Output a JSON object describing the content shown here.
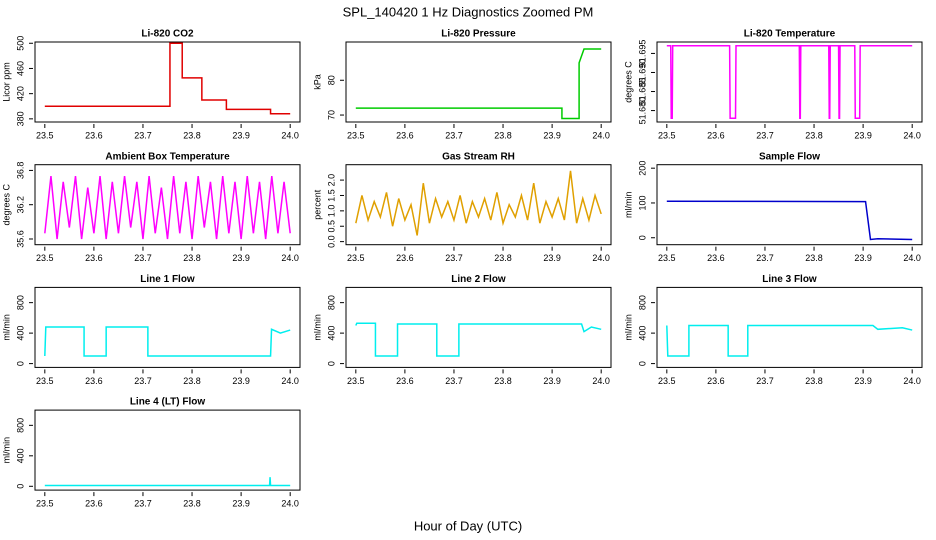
{
  "title": "SPL_140420  1 Hz Diagnostics Zoomed PM",
  "xlabel": "Hour of Day (UTC)",
  "chart_data": [
    {
      "type": "line",
      "title": "Li-820 CO2",
      "ylabel": "Licor ppm",
      "xlim": [
        23.48,
        24.02
      ],
      "xticks": [
        23.5,
        23.6,
        23.7,
        23.8,
        23.9,
        {
          "value": 24,
          "label": "24.0"
        }
      ],
      "ylim": [
        375,
        502
      ],
      "yticks": [
        380,
        420,
        460,
        500
      ],
      "series": [
        {
          "color": "#e00000",
          "x": [
            23.5,
            23.755,
            23.755,
            23.78,
            23.78,
            23.82,
            23.82,
            23.87,
            23.87,
            23.96,
            23.96,
            24.0
          ],
          "values": [
            400,
            400,
            500,
            500,
            445,
            445,
            410,
            410,
            395,
            395,
            388,
            388
          ]
        }
      ]
    },
    {
      "type": "line",
      "title": "Li-820 Pressure",
      "ylabel": "kPa",
      "xlim": [
        23.48,
        24.02
      ],
      "xticks": [
        23.5,
        23.6,
        23.7,
        23.8,
        23.9,
        {
          "value": 24,
          "label": "24.0"
        }
      ],
      "ylim": [
        68,
        91
      ],
      "yticks": [
        70,
        80
      ],
      "series": [
        {
          "color": "#00cc00",
          "x": [
            23.5,
            23.92,
            23.92,
            23.955,
            23.955,
            23.965,
            24.0
          ],
          "values": [
            72,
            72,
            69,
            69,
            85,
            89,
            89
          ]
        }
      ]
    },
    {
      "type": "line",
      "title": "Li-820 Temperature",
      "ylabel": "degrees C",
      "xlim": [
        23.48,
        24.02
      ],
      "xticks": [
        23.5,
        23.6,
        23.7,
        23.8,
        23.9,
        {
          "value": 24,
          "label": "24.0"
        }
      ],
      "ylim": [
        51.677,
        51.698
      ],
      "yticks": [
        {
          "value": 51.68,
          "label": "51.680"
        },
        51.685,
        {
          "value": 51.69,
          "label": "51.690"
        },
        51.695
      ],
      "series": [
        {
          "color": "#ff00ff",
          "x": [
            23.5,
            23.508,
            23.509,
            23.511,
            23.512,
            23.628,
            23.629,
            23.64,
            23.641,
            23.77,
            23.771,
            23.772,
            23.773,
            23.83,
            23.831,
            23.832,
            23.833,
            23.85,
            23.851,
            23.852,
            23.853,
            23.883,
            23.884,
            23.893,
            23.894,
            24.0
          ],
          "values": [
            51.697,
            51.697,
            51.678,
            51.678,
            51.697,
            51.697,
            51.678,
            51.678,
            51.697,
            51.697,
            51.678,
            51.678,
            51.697,
            51.697,
            51.678,
            51.678,
            51.697,
            51.697,
            51.678,
            51.678,
            51.697,
            51.697,
            51.678,
            51.678,
            51.697,
            51.697
          ]
        }
      ]
    },
    {
      "type": "line",
      "title": "Ambient Box Temperature",
      "ylabel": "degrees C",
      "xlim": [
        23.48,
        24.02
      ],
      "xticks": [
        23.5,
        23.6,
        23.7,
        23.8,
        23.9,
        {
          "value": 24,
          "label": "24.0"
        }
      ],
      "ylim": [
        35.5,
        36.9
      ],
      "yticks": [
        35.6,
        36.2,
        36.8
      ],
      "series": [
        {
          "color": "#ff00ff",
          "x": [
            23.5,
            23.5125,
            23.525,
            23.5375,
            23.55,
            23.5625,
            23.575,
            23.5875,
            23.6,
            23.6125,
            23.625,
            23.6375,
            23.65,
            23.6625,
            23.675,
            23.6875,
            23.7,
            23.7125,
            23.725,
            23.7375,
            23.75,
            23.7625,
            23.775,
            23.7875,
            23.8,
            23.8125,
            23.825,
            23.8375,
            23.85,
            23.8625,
            23.875,
            23.8875,
            23.9,
            23.9125,
            23.925,
            23.9375,
            23.95,
            23.9625,
            23.975,
            23.9875,
            24.0
          ],
          "values": [
            35.7,
            36.7,
            35.6,
            36.6,
            35.8,
            36.7,
            35.6,
            36.5,
            35.7,
            36.7,
            35.6,
            36.6,
            35.7,
            36.7,
            35.8,
            36.6,
            35.6,
            36.7,
            35.7,
            36.5,
            35.6,
            36.7,
            35.7,
            36.6,
            35.6,
            36.7,
            35.8,
            36.6,
            35.6,
            36.7,
            35.7,
            36.6,
            35.6,
            36.7,
            35.7,
            36.6,
            35.6,
            36.7,
            35.7,
            36.6,
            35.7
          ]
        }
      ]
    },
    {
      "type": "line",
      "title": "Gas Stream RH",
      "ylabel": "percent",
      "xlim": [
        23.48,
        24.02
      ],
      "xticks": [
        23.5,
        23.6,
        23.7,
        23.8,
        23.9,
        {
          "value": 24,
          "label": "24.0"
        }
      ],
      "ylim": [
        -0.1,
        2.5
      ],
      "yticks": [
        {
          "value": 0,
          "label": "0.0"
        },
        0.5,
        {
          "value": 1,
          "label": "1.0"
        },
        1.5,
        {
          "value": 2,
          "label": "2.0"
        }
      ],
      "series": [
        {
          "color": "#e0a000",
          "x": [
            23.5,
            23.5125,
            23.525,
            23.5375,
            23.55,
            23.5625,
            23.575,
            23.5875,
            23.6,
            23.6125,
            23.625,
            23.6375,
            23.65,
            23.6625,
            23.675,
            23.6875,
            23.7,
            23.7125,
            23.725,
            23.7375,
            23.75,
            23.7625,
            23.775,
            23.7875,
            23.8,
            23.8125,
            23.825,
            23.8375,
            23.85,
            23.8625,
            23.875,
            23.8875,
            23.9,
            23.9125,
            23.925,
            23.9375,
            23.95,
            23.9625,
            23.975,
            23.9875,
            24.0
          ],
          "values": [
            0.6,
            1.5,
            0.7,
            1.3,
            0.8,
            1.6,
            0.5,
            1.4,
            0.7,
            1.2,
            0.2,
            1.9,
            0.6,
            1.4,
            0.8,
            1.3,
            0.7,
            1.5,
            0.6,
            1.3,
            0.8,
            1.4,
            0.7,
            1.6,
            0.6,
            1.2,
            0.8,
            1.5,
            0.7,
            1.9,
            0.6,
            1.3,
            0.8,
            1.4,
            0.7,
            2.3,
            0.6,
            1.4,
            0.7,
            1.5,
            0.9
          ]
        }
      ]
    },
    {
      "type": "line",
      "title": "Sample Flow",
      "ylabel": "ml/min",
      "xlim": [
        23.48,
        24.02
      ],
      "xticks": [
        23.5,
        23.6,
        23.7,
        23.8,
        23.9,
        {
          "value": 24,
          "label": "24.0"
        }
      ],
      "ylim": [
        -20,
        210
      ],
      "yticks": [
        0,
        100,
        200
      ],
      "series": [
        {
          "color": "#0000cc",
          "x": [
            23.5,
            23.905,
            23.915,
            23.93,
            24.0
          ],
          "values": [
            105,
            104,
            -5,
            -3,
            -5
          ]
        }
      ]
    },
    {
      "type": "line",
      "title": "Line 1 Flow",
      "ylabel": "ml/min",
      "xlim": [
        23.48,
        24.02
      ],
      "xticks": [
        23.5,
        23.6,
        23.7,
        23.8,
        23.9,
        {
          "value": 24,
          "label": "24.0"
        }
      ],
      "ylim": [
        -50,
        1000
      ],
      "yticks": [
        0,
        400,
        800
      ],
      "series": [
        {
          "color": "#00eeee",
          "x": [
            23.5,
            23.502,
            23.58,
            23.58,
            23.625,
            23.625,
            23.71,
            23.71,
            23.96,
            23.962,
            23.98,
            24.0
          ],
          "values": [
            100,
            480,
            480,
            100,
            100,
            480,
            480,
            100,
            100,
            450,
            400,
            440
          ]
        }
      ]
    },
    {
      "type": "line",
      "title": "Line 2 Flow",
      "ylabel": "ml/min",
      "xlim": [
        23.48,
        24.02
      ],
      "xticks": [
        23.5,
        23.6,
        23.7,
        23.8,
        23.9,
        {
          "value": 24,
          "label": "24.0"
        }
      ],
      "ylim": [
        -50,
        1000
      ],
      "yticks": [
        0,
        400,
        800
      ],
      "series": [
        {
          "color": "#00eeee",
          "x": [
            23.5,
            23.502,
            23.54,
            23.54,
            23.585,
            23.585,
            23.665,
            23.665,
            23.71,
            23.71,
            23.96,
            23.965,
            23.98,
            24.0
          ],
          "values": [
            500,
            530,
            530,
            100,
            100,
            520,
            520,
            100,
            100,
            520,
            520,
            420,
            480,
            450
          ]
        }
      ]
    },
    {
      "type": "line",
      "title": "Line 3 Flow",
      "ylabel": "ml/min",
      "xlim": [
        23.48,
        24.02
      ],
      "xticks": [
        23.5,
        23.6,
        23.7,
        23.8,
        23.9,
        {
          "value": 24,
          "label": "24.0"
        }
      ],
      "ylim": [
        -50,
        1000
      ],
      "yticks": [
        0,
        400,
        800
      ],
      "series": [
        {
          "color": "#00eeee",
          "x": [
            23.5,
            23.502,
            23.545,
            23.545,
            23.625,
            23.625,
            23.665,
            23.665,
            23.92,
            23.93,
            23.98,
            24.0
          ],
          "values": [
            500,
            100,
            100,
            500,
            500,
            100,
            100,
            500,
            500,
            450,
            470,
            440
          ]
        }
      ]
    },
    {
      "type": "line",
      "title": "Line 4 (LT) Flow",
      "ylabel": "ml/min",
      "xlim": [
        23.48,
        24.02
      ],
      "xticks": [
        23.5,
        23.6,
        23.7,
        23.8,
        23.9,
        {
          "value": 24,
          "label": "24.0"
        }
      ],
      "ylim": [
        -50,
        1000
      ],
      "yticks": [
        0,
        400,
        800
      ],
      "series": [
        {
          "color": "#00eeee",
          "x": [
            23.5,
            23.958,
            23.959,
            23.96,
            24.0
          ],
          "values": [
            10,
            10,
            120,
            10,
            10
          ]
        }
      ]
    }
  ]
}
